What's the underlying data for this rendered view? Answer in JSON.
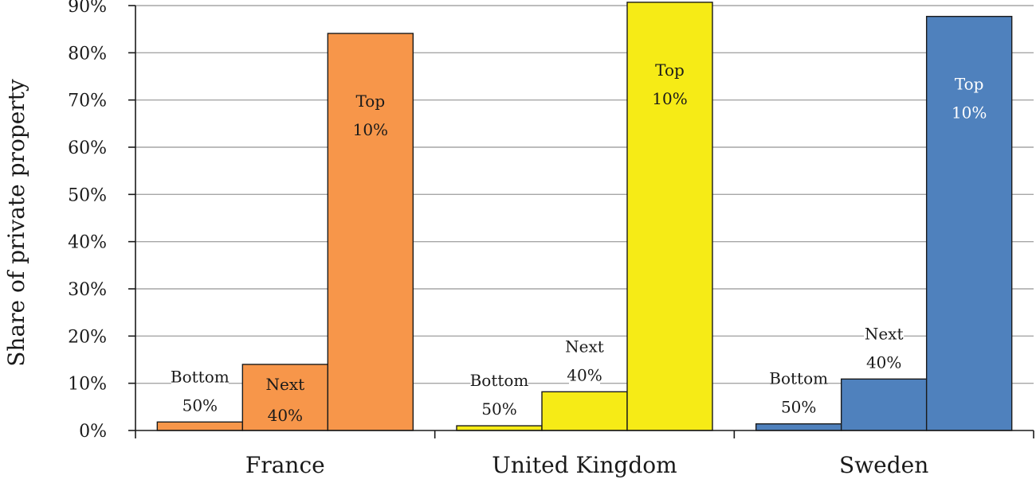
{
  "chart_data": {
    "type": "bar",
    "title": "",
    "ylabel": "Share of private property",
    "xlabel": "",
    "ylim": [
      0,
      90
    ],
    "yticks": [
      "0%",
      "10%",
      "20%",
      "30%",
      "40%",
      "50%",
      "60%",
      "70%",
      "80%",
      "90%"
    ],
    "grid": true,
    "legend": "none",
    "categories": [
      "France",
      "United Kingdom",
      "Sweden"
    ],
    "series": [
      {
        "group": "Bottom 50%",
        "label_line1": "Bottom",
        "label_line2": "50%",
        "values": [
          1.8,
          1.0,
          1.4
        ]
      },
      {
        "group": "Next 40%",
        "label_line1": "Next",
        "label_line2": "40%",
        "values": [
          14.0,
          8.2,
          10.9
        ]
      },
      {
        "group": "Top 10%",
        "label_line1": "Top",
        "label_line2": "10%",
        "values": [
          84.1,
          90.7,
          87.7
        ]
      }
    ],
    "colors": [
      "#F7964A",
      "#F6EB16",
      "#4F81BD"
    ]
  }
}
